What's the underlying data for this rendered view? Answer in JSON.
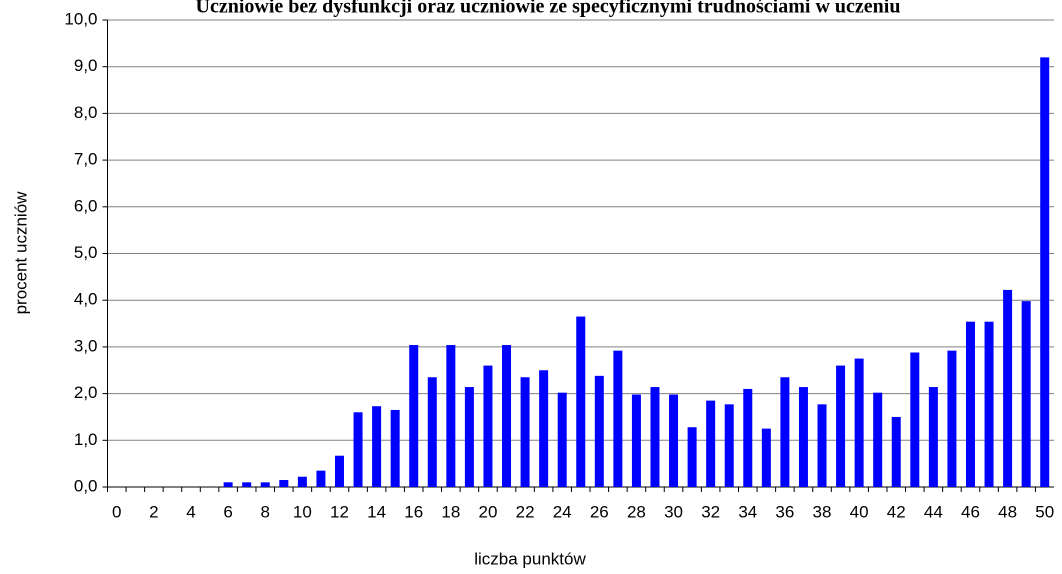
{
  "chart_data": {
    "type": "bar",
    "title": "Uczniowie bez dysfunkcji oraz uczniowie ze specyficznymi trudnościami w uczeniu",
    "x_label": "liczba punktów",
    "y_label": "procent uczniów",
    "categories": [
      "0",
      null,
      "2",
      null,
      "4",
      null,
      "6",
      null,
      "8",
      null,
      "10",
      null,
      "12",
      null,
      "14",
      null,
      "16",
      null,
      "18",
      null,
      "20",
      null,
      "22",
      null,
      "24",
      null,
      "26",
      null,
      "28",
      null,
      "30",
      null,
      "32",
      null,
      "34",
      null,
      "36",
      null,
      "38",
      null,
      "40",
      null,
      "42",
      null,
      "44",
      null,
      "46",
      null,
      "48",
      null,
      "50"
    ],
    "values": [
      0,
      0,
      0,
      0,
      0,
      0,
      0.1,
      0.1,
      0.1,
      0.15,
      0.22,
      0.35,
      0.67,
      1.6,
      1.73,
      1.65,
      3.04,
      2.35,
      3.04,
      2.14,
      2.6,
      3.04,
      2.35,
      2.5,
      2.02,
      3.65,
      2.38,
      2.92,
      1.98,
      2.14,
      1.98,
      1.28,
      1.85,
      1.77,
      2.1,
      1.25,
      2.35,
      2.14,
      1.77,
      2.6,
      2.75,
      2.02,
      1.5,
      2.88,
      2.14,
      2.92,
      3.54,
      3.54,
      4.22,
      3.98,
      9.2
    ],
    "color": "#0000ff",
    "ylim": [
      0,
      10
    ],
    "yticks": [
      {
        "value": 0,
        "label": "0,0"
      },
      {
        "value": 1,
        "label": "1,0"
      },
      {
        "value": 2,
        "label": "2,0"
      },
      {
        "value": 3,
        "label": "3,0"
      },
      {
        "value": 4,
        "label": "4,0"
      },
      {
        "value": 5,
        "label": "5,0"
      },
      {
        "value": 6,
        "label": "6,0"
      },
      {
        "value": 7,
        "label": "7,0"
      },
      {
        "value": 8,
        "label": "8,0"
      },
      {
        "value": 9,
        "label": "9,0"
      },
      {
        "value": 10,
        "label": "10,0"
      }
    ],
    "grid": true
  }
}
